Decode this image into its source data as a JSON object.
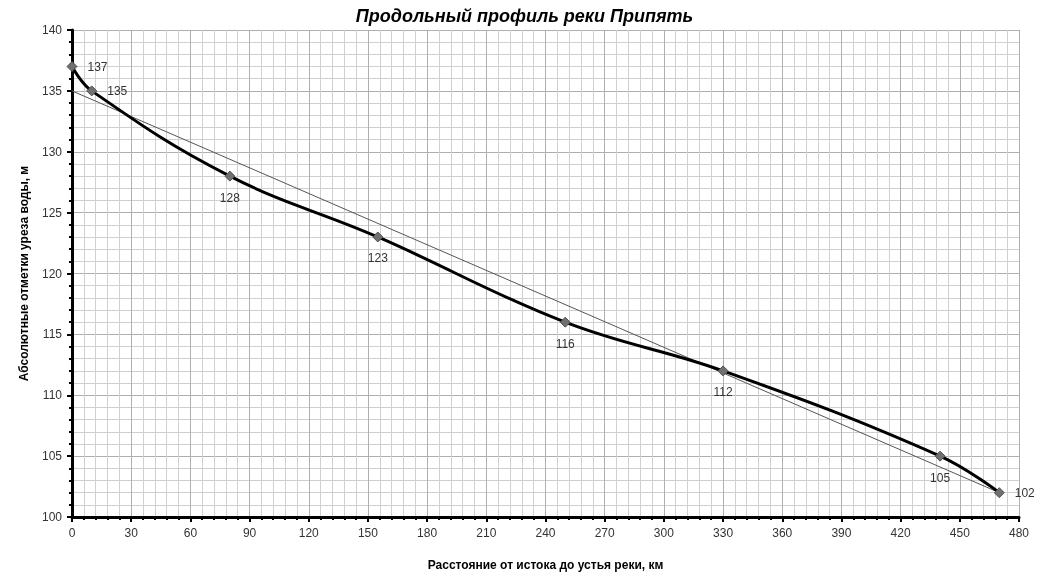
{
  "chart_data": {
    "type": "line",
    "title": "Продольный профиль реки Припять",
    "xlabel": "Расстояние от истока до устья реки, км",
    "ylabel": "Абсолютные отметки уреза воды, м",
    "series": [
      {
        "color": "#000000",
        "x": [
          0,
          10,
          80,
          155,
          250,
          330,
          440,
          470
        ],
        "values": [
          137,
          135,
          128,
          123,
          116,
          112,
          105,
          102
        ],
        "value_labels": [
          "137",
          "135",
          "128",
          "123",
          "116",
          "112",
          "105",
          "102"
        ],
        "marker": "diamond"
      },
      {
        "type": "line",
        "color": "#555555",
        "x": [
          0,
          470
        ],
        "values": [
          135,
          102
        ]
      }
    ],
    "xlim": [
      0,
      480
    ],
    "xticks": [
      0,
      30,
      60,
      90,
      120,
      150,
      180,
      210,
      240,
      270,
      300,
      330,
      360,
      390,
      420,
      450,
      480
    ],
    "ylim": [
      100,
      140
    ],
    "yticks": [
      100,
      105,
      110,
      115,
      120,
      125,
      130,
      135,
      140
    ],
    "grid": true,
    "line_style": "solid"
  }
}
